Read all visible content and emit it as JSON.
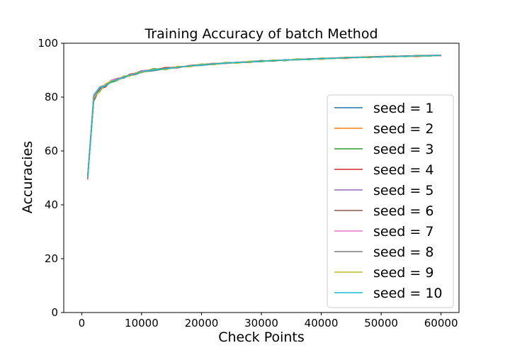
{
  "chart_data": {
    "type": "line",
    "title": "Training Accuracy of batch Method",
    "xlabel": "Check Points",
    "ylabel": "Accuracies",
    "xlim": [
      -3000,
      63000
    ],
    "ylim": [
      0,
      100
    ],
    "xticks": [
      0,
      10000,
      20000,
      30000,
      40000,
      50000,
      60000
    ],
    "xtick_labels": [
      "0",
      "10000",
      "20000",
      "30000",
      "40000",
      "50000",
      "60000"
    ],
    "yticks": [
      0,
      20,
      40,
      60,
      80,
      100
    ],
    "ytick_labels": [
      "0",
      "20",
      "40",
      "60",
      "80",
      "100"
    ],
    "grid": false,
    "legend_position": "lower-right",
    "x": [
      1000,
      2000,
      3000,
      4000,
      5000,
      6000,
      7000,
      8000,
      9000,
      10000,
      12000,
      14000,
      16000,
      18000,
      20000,
      22000,
      24000,
      26000,
      28000,
      30000,
      32000,
      34000,
      36000,
      38000,
      40000,
      42000,
      44000,
      46000,
      48000,
      50000,
      52000,
      54000,
      56000,
      58000,
      60000
    ],
    "series": [
      {
        "name": "seed = 1",
        "color": "#1f77b4",
        "values": [
          50.0,
          80.0,
          83.5,
          84.2,
          86.0,
          86.5,
          87.3,
          88.0,
          88.6,
          89.3,
          89.8,
          90.5,
          91.0,
          91.5,
          91.8,
          92.2,
          92.5,
          92.8,
          93.0,
          93.3,
          93.5,
          93.7,
          93.9,
          94.0,
          94.2,
          94.4,
          94.5,
          94.7,
          94.8,
          94.9,
          95.0,
          95.1,
          95.2,
          95.3,
          95.4
        ]
      },
      {
        "name": "seed = 2",
        "color": "#ff7f0e",
        "values": [
          50.5,
          79.0,
          82.8,
          84.8,
          85.8,
          86.8,
          87.6,
          88.2,
          88.3,
          89.6,
          90.3,
          90.7,
          90.8,
          91.8,
          92.0,
          92.6,
          92.4,
          93.0,
          92.8,
          93.6,
          93.3,
          93.9,
          93.8,
          94.3,
          94.0,
          94.6,
          94.3,
          94.9,
          94.6,
          95.1,
          94.9,
          95.3,
          95.0,
          95.5,
          95.3
        ]
      },
      {
        "name": "seed = 3",
        "color": "#2ca02c",
        "values": [
          51.0,
          80.5,
          82.0,
          85.0,
          85.5,
          86.2,
          87.8,
          87.8,
          89.0,
          89.0,
          90.6,
          90.2,
          91.4,
          91.2,
          92.3,
          92.0,
          92.9,
          92.6,
          93.3,
          93.1,
          93.8,
          93.5,
          94.2,
          93.9,
          94.5,
          94.3,
          94.8,
          94.6,
          95.0,
          94.8,
          95.3,
          95.0,
          95.5,
          95.2,
          95.6
        ]
      },
      {
        "name": "seed = 4",
        "color": "#d62728",
        "values": [
          49.5,
          78.5,
          83.0,
          83.8,
          86.2,
          87.0,
          87.0,
          88.5,
          88.9,
          89.8,
          90.0,
          91.0,
          90.9,
          91.7,
          92.1,
          92.4,
          92.7,
          92.9,
          93.2,
          93.4,
          93.6,
          93.8,
          94.0,
          94.2,
          94.3,
          94.5,
          94.7,
          94.8,
          95.0,
          95.1,
          95.2,
          95.3,
          95.4,
          95.5,
          95.6
        ]
      },
      {
        "name": "seed = 5",
        "color": "#9467bd",
        "values": [
          50.2,
          79.5,
          82.5,
          84.5,
          85.6,
          86.6,
          87.5,
          87.9,
          88.8,
          89.5,
          90.1,
          90.6,
          91.1,
          91.6,
          91.9,
          92.3,
          92.6,
          92.7,
          93.1,
          93.2,
          93.6,
          93.6,
          94.0,
          94.1,
          94.3,
          94.4,
          94.6,
          94.7,
          94.9,
          95.0,
          95.1,
          95.2,
          95.3,
          95.4,
          95.5
        ]
      },
      {
        "name": "seed = 6",
        "color": "#8c564b",
        "values": [
          50.8,
          79.8,
          83.2,
          84.0,
          85.9,
          86.4,
          87.2,
          88.1,
          88.5,
          89.4,
          89.9,
          90.8,
          91.2,
          91.4,
          92.0,
          92.1,
          92.8,
          92.8,
          93.2,
          93.5,
          93.4,
          93.9,
          93.9,
          94.1,
          94.4,
          94.5,
          94.6,
          94.8,
          94.9,
          95.0,
          95.2,
          95.2,
          95.4,
          95.4,
          95.5
        ]
      },
      {
        "name": "seed = 7",
        "color": "#e377c2",
        "values": [
          49.8,
          80.2,
          83.8,
          84.6,
          86.4,
          86.9,
          87.4,
          88.3,
          88.7,
          89.7,
          90.2,
          90.4,
          91.3,
          91.5,
          91.9,
          92.5,
          92.5,
          93.0,
          93.0,
          93.4,
          93.6,
          93.7,
          94.0,
          94.1,
          94.3,
          94.5,
          94.5,
          94.8,
          94.8,
          95.0,
          95.1,
          95.2,
          95.3,
          95.4,
          95.4
        ]
      },
      {
        "name": "seed = 8",
        "color": "#7f7f7f",
        "values": [
          50.3,
          79.2,
          83.4,
          84.4,
          85.7,
          86.7,
          87.1,
          88.0,
          88.4,
          89.2,
          90.0,
          90.5,
          91.0,
          91.6,
          92.1,
          92.2,
          92.6,
          92.9,
          93.1,
          93.3,
          93.5,
          93.8,
          93.9,
          94.2,
          94.2,
          94.4,
          94.6,
          94.7,
          94.9,
          94.9,
          95.1,
          95.2,
          95.3,
          95.4,
          95.5
        ]
      },
      {
        "name": "seed = 9",
        "color": "#bcbd22",
        "values": [
          50.6,
          79.6,
          82.2,
          84.9,
          86.1,
          86.3,
          87.7,
          87.7,
          89.1,
          89.1,
          90.4,
          90.3,
          91.3,
          91.3,
          92.2,
          92.1,
          92.8,
          92.6,
          93.3,
          93.2,
          93.7,
          93.6,
          94.1,
          94.0,
          94.4,
          94.3,
          94.7,
          94.6,
          95.0,
          94.9,
          95.2,
          95.1,
          95.4,
          95.3,
          95.6
        ]
      },
      {
        "name": "seed = 10",
        "color": "#17becf",
        "values": [
          50.1,
          80.8,
          83.6,
          84.1,
          85.8,
          86.6,
          87.4,
          88.2,
          88.6,
          89.5,
          90.1,
          90.6,
          91.0,
          91.6,
          91.9,
          92.4,
          92.6,
          92.9,
          93.0,
          93.4,
          93.5,
          93.8,
          93.9,
          94.1,
          94.3,
          94.4,
          94.6,
          94.7,
          94.8,
          95.0,
          95.1,
          95.2,
          95.3,
          95.4,
          95.5
        ]
      }
    ]
  }
}
